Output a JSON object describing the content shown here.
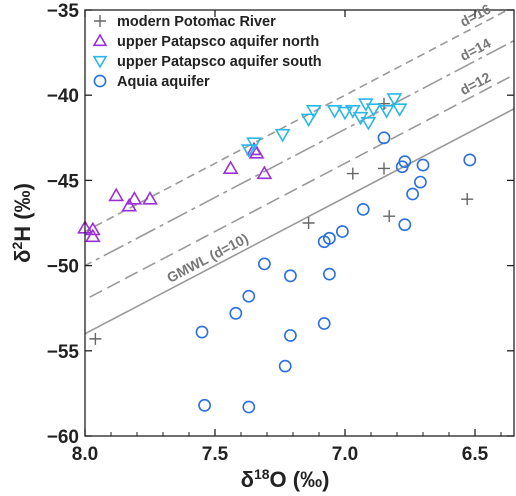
{
  "chart_data": {
    "type": "scatter",
    "title": "",
    "xlabel": "δ18O (‰)",
    "ylabel": "δ2H (‰)",
    "xlim": [
      8.0,
      6.35
    ],
    "ylim": [
      -60,
      -35
    ],
    "x_reversed": true,
    "x_ticks": [
      "8.0",
      "7.5",
      "7.0",
      "6.5"
    ],
    "y_ticks": [
      "−35",
      "−40",
      "−45",
      "−50",
      "−55",
      "−60"
    ],
    "legend_position": "top-left",
    "series": [
      {
        "name": "modern Potomac River",
        "marker": "plus",
        "color": "#666666",
        "points": [
          {
            "x": 7.96,
            "y": -54.3
          },
          {
            "x": 7.14,
            "y": -47.5
          },
          {
            "x": 6.97,
            "y": -44.6
          },
          {
            "x": 6.85,
            "y": -44.3
          },
          {
            "x": 6.83,
            "y": -47.1
          },
          {
            "x": 6.85,
            "y": -40.5
          },
          {
            "x": 6.53,
            "y": -46.1
          }
        ]
      },
      {
        "name": "upper Patapsco aquifer north",
        "marker": "triangle-up",
        "color": "#9b30d9",
        "points": [
          {
            "x": 8.0,
            "y": -47.8
          },
          {
            "x": 7.97,
            "y": -47.9
          },
          {
            "x": 7.97,
            "y": -48.3
          },
          {
            "x": 7.88,
            "y": -45.9
          },
          {
            "x": 7.83,
            "y": -46.5
          },
          {
            "x": 7.81,
            "y": -46.1
          },
          {
            "x": 7.75,
            "y": -46.1
          },
          {
            "x": 7.44,
            "y": -44.3
          },
          {
            "x": 7.35,
            "y": -43.2
          },
          {
            "x": 7.34,
            "y": -43.4
          },
          {
            "x": 7.31,
            "y": -44.6
          }
        ]
      },
      {
        "name": "upper Patapsco aquifer south",
        "marker": "triangle-down",
        "color": "#2ab8e8",
        "points": [
          {
            "x": 7.37,
            "y": -43.2
          },
          {
            "x": 7.35,
            "y": -42.8
          },
          {
            "x": 7.24,
            "y": -42.3
          },
          {
            "x": 7.14,
            "y": -41.4
          },
          {
            "x": 7.12,
            "y": -40.9
          },
          {
            "x": 7.04,
            "y": -40.9
          },
          {
            "x": 7.0,
            "y": -41.0
          },
          {
            "x": 6.97,
            "y": -40.9
          },
          {
            "x": 6.94,
            "y": -41.3
          },
          {
            "x": 6.92,
            "y": -40.5
          },
          {
            "x": 6.91,
            "y": -41.6
          },
          {
            "x": 6.89,
            "y": -40.8
          },
          {
            "x": 6.84,
            "y": -40.9
          },
          {
            "x": 6.81,
            "y": -40.2
          },
          {
            "x": 6.79,
            "y": -40.8
          }
        ]
      },
      {
        "name": "Aquia aquifer",
        "marker": "circle",
        "color": "#2b6fe0",
        "points": [
          {
            "x": 6.85,
            "y": -42.5
          },
          {
            "x": 6.78,
            "y": -44.2
          },
          {
            "x": 6.77,
            "y": -43.9
          },
          {
            "x": 6.7,
            "y": -44.1
          },
          {
            "x": 6.71,
            "y": -45.1
          },
          {
            "x": 6.74,
            "y": -45.8
          },
          {
            "x": 6.52,
            "y": -43.8
          },
          {
            "x": 6.77,
            "y": -47.6
          },
          {
            "x": 6.93,
            "y": -46.7
          },
          {
            "x": 7.01,
            "y": -48.0
          },
          {
            "x": 7.06,
            "y": -48.4
          },
          {
            "x": 7.08,
            "y": -48.6
          },
          {
            "x": 7.06,
            "y": -50.5
          },
          {
            "x": 7.31,
            "y": -49.9
          },
          {
            "x": 7.21,
            "y": -50.6
          },
          {
            "x": 7.37,
            "y": -51.8
          },
          {
            "x": 7.42,
            "y": -52.8
          },
          {
            "x": 7.08,
            "y": -53.4
          },
          {
            "x": 7.21,
            "y": -54.1
          },
          {
            "x": 7.55,
            "y": -53.9
          },
          {
            "x": 7.23,
            "y": -55.9
          },
          {
            "x": 7.54,
            "y": -58.2
          },
          {
            "x": 7.37,
            "y": -58.3
          }
        ]
      }
    ],
    "reference_lines": [
      {
        "name": "GMWL (d=10)",
        "label": "GMWL (d=10)",
        "d": 10,
        "style": "solid",
        "color": "#9a9a9a"
      },
      {
        "name": "d=12",
        "label": "d=12",
        "d": 12,
        "style": "long-dash",
        "color": "#9a9a9a"
      },
      {
        "name": "d=14",
        "label": "d=14",
        "d": 14,
        "style": "long-dash-dot",
        "color": "#9a9a9a"
      },
      {
        "name": "d=16",
        "label": "d=16",
        "d": 16,
        "style": "short-dash",
        "color": "#9a9a9a"
      }
    ],
    "grid": false
  }
}
